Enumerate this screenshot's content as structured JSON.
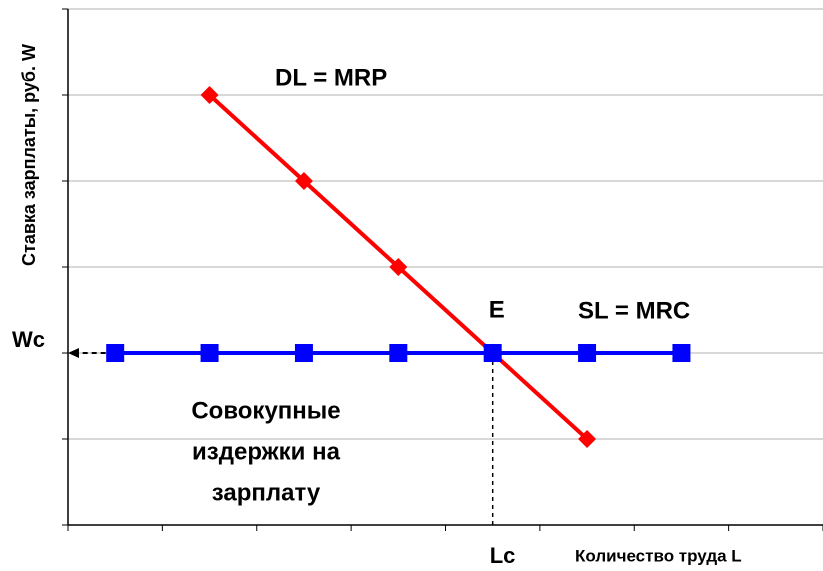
{
  "chart_data": {
    "type": "line",
    "x_label": "Количество труда L",
    "y_label": "Ставка зарплаты, руб. W",
    "xlim": [
      0,
      8
    ],
    "ylim": [
      0,
      6
    ],
    "xticks": [
      0,
      1,
      2,
      3,
      4,
      5,
      6,
      7,
      8
    ],
    "yticks": [
      0,
      1,
      2,
      3,
      4,
      5,
      6
    ],
    "grid": true,
    "series": [
      {
        "name": "DL = MRP",
        "color": "#ff0000",
        "marker": "diamond",
        "x": [
          1.5,
          2.5,
          3.5,
          4.5,
          5.5
        ],
        "values": [
          5,
          4,
          3,
          2,
          1
        ]
      },
      {
        "name": "SL = MRC",
        "color": "#0000ff",
        "marker": "square",
        "x": [
          0.5,
          1.5,
          2.5,
          3.5,
          4.5,
          5.5,
          6.5
        ],
        "values": [
          2,
          2,
          2,
          2,
          2,
          2,
          2
        ]
      }
    ],
    "equilibrium": {
      "label": "E",
      "x": 4.5,
      "y": 2,
      "x_label": "Lc",
      "y_label": "Wc"
    },
    "area_label": [
      "Совокупные",
      "издержки на",
      "зарплату"
    ]
  }
}
